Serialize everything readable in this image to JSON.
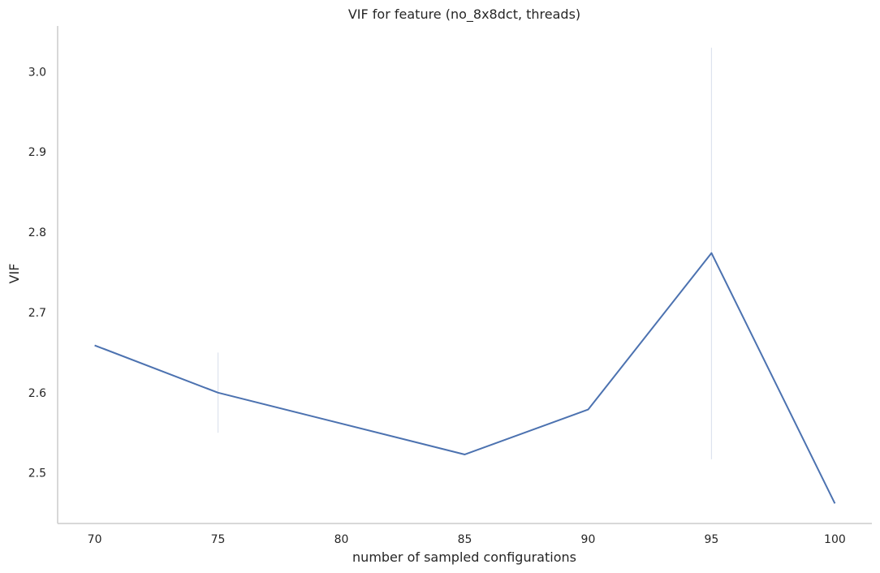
{
  "chart_data": {
    "type": "line",
    "title": "VIF for feature (no_8x8dct, threads)",
    "xlabel": "number of sampled configurations",
    "ylabel": "VIF",
    "x": [
      70,
      75,
      80,
      85,
      90,
      95,
      100
    ],
    "x_tick_labels": [
      "70",
      "75",
      "80",
      "85",
      "90",
      "95",
      "100"
    ],
    "y_tick_labels": [
      "2.5",
      "2.6",
      "2.7",
      "2.8",
      "2.9",
      "3.0"
    ],
    "y_ticks": [
      2.5,
      2.6,
      2.7,
      2.8,
      2.9,
      3.0
    ],
    "xlim": [
      68.5,
      101.5
    ],
    "ylim": [
      2.437,
      3.057
    ],
    "grid": false,
    "series": [
      {
        "color": "#4c72b0",
        "points": [
          {
            "x": 70,
            "y": 2.659
          },
          {
            "x": 75,
            "y": 2.6
          },
          {
            "x": 85,
            "y": 2.523
          },
          {
            "x": 90,
            "y": 2.579
          },
          {
            "x": 95,
            "y": 2.774
          },
          {
            "x": 100,
            "y": 2.462
          }
        ],
        "error_bars": [
          {
            "x": 75,
            "low": 2.55,
            "high": 2.65
          },
          {
            "x": 95,
            "low": 2.517,
            "high": 3.03
          },
          {
            "x": 100,
            "low": 2.462,
            "high": 2.462
          }
        ]
      }
    ],
    "error_bar_color": "#dde3ee"
  }
}
